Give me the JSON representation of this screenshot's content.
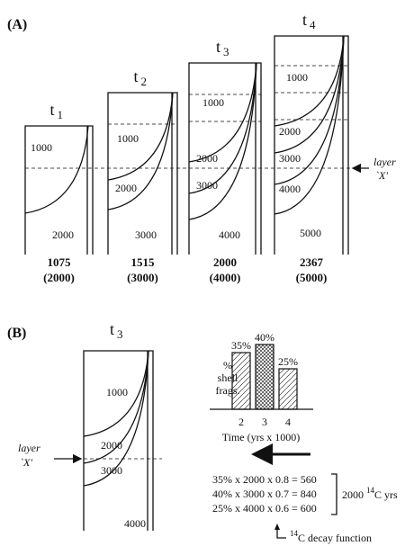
{
  "panel_a": {
    "label": "(A)",
    "columns": [
      {
        "t": "t",
        "sub": "1",
        "layers": [
          "1000",
          "2000"
        ],
        "age": "1075",
        "age_paren": "(2000)"
      },
      {
        "t": "t",
        "sub": "2",
        "layers": [
          "1000",
          "2000",
          "3000"
        ],
        "age": "1515",
        "age_paren": "(3000)"
      },
      {
        "t": "t",
        "sub": "3",
        "layers": [
          "1000",
          "2000",
          "3000",
          "4000"
        ],
        "age": "2000",
        "age_paren": "(4000)"
      },
      {
        "t": "t",
        "sub": "4",
        "layers": [
          "1000",
          "2000",
          "3000",
          "4000",
          "5000"
        ],
        "age": "2367",
        "age_paren": "(5000)"
      }
    ],
    "layer_label": "layer",
    "layer_name": "`X'"
  },
  "panel_b": {
    "label": "(B)",
    "t": "t",
    "sub": "3",
    "layers": [
      "1000",
      "2000",
      "3000",
      "4000"
    ],
    "layer_label": "layer",
    "layer_name": "`X'",
    "bar_chart": {
      "type": "bar",
      "categories": [
        "2",
        "3",
        "4"
      ],
      "values": [
        35,
        40,
        25
      ],
      "value_labels": [
        "35%",
        "40%",
        "25%"
      ],
      "ylabel": [
        "%",
        "shell",
        "frags."
      ],
      "xlabel": "Time (yrs x 1000)"
    },
    "equations": [
      "35% x 2000 x 0.8 = 560",
      "40% x 3000 x 0.7 = 840",
      "25% x 4000 x 0.6 = 600"
    ],
    "result": "2000",
    "result_sup": "14",
    "result_unit": "C yrs",
    "decay_sup": "14",
    "decay_text": "C decay function"
  }
}
